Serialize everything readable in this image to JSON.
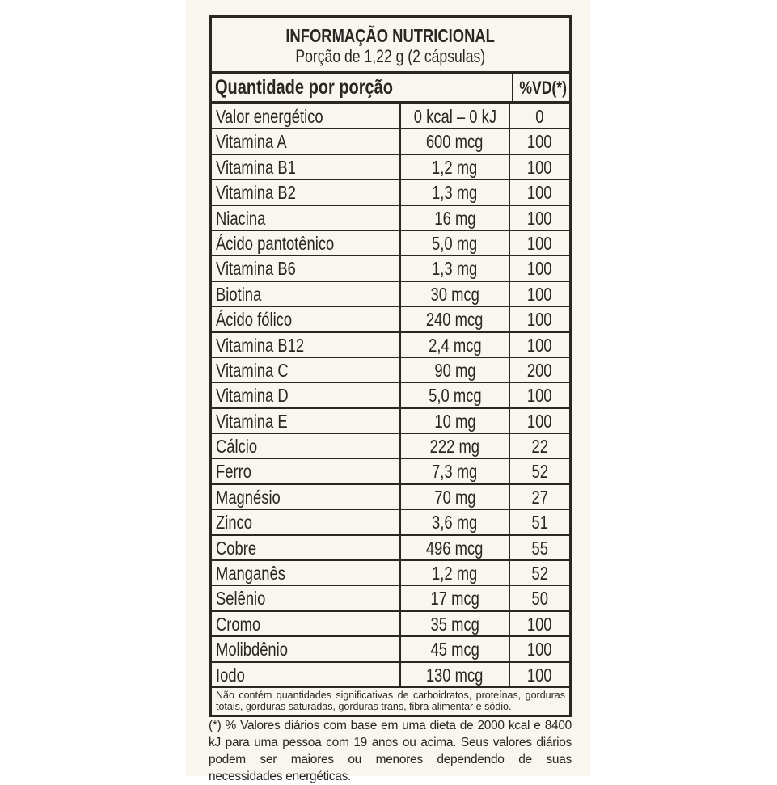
{
  "title": "INFORMAÇÃO NUTRICIONAL",
  "serving": "Porção de 1,22 g (2 cápsulas)",
  "header": {
    "quantity": "Quantidade por porção",
    "dv": "%VD(*)"
  },
  "rows": [
    {
      "name": "Valor energético",
      "amount": "0 kcal – 0 kJ",
      "dv": "0"
    },
    {
      "name": "Vitamina A",
      "amount": "600 mcg",
      "dv": "100"
    },
    {
      "name": "Vitamina B1",
      "amount": "1,2 mg",
      "dv": "100"
    },
    {
      "name": "Vitamina B2",
      "amount": "1,3 mg",
      "dv": "100"
    },
    {
      "name": "Niacina",
      "amount": "16 mg",
      "dv": "100"
    },
    {
      "name": "Ácido pantotênico",
      "amount": "5,0 mg",
      "dv": "100"
    },
    {
      "name": "Vitamina B6",
      "amount": "1,3 mg",
      "dv": "100"
    },
    {
      "name": "Biotina",
      "amount": "30 mcg",
      "dv": "100"
    },
    {
      "name": "Ácido fólico",
      "amount": "240 mcg",
      "dv": "100"
    },
    {
      "name": "Vitamina B12",
      "amount": "2,4 mcg",
      "dv": "100"
    },
    {
      "name": "Vitamina C",
      "amount": "90 mg",
      "dv": "200"
    },
    {
      "name": "Vitamina D",
      "amount": "5,0 mcg",
      "dv": "100"
    },
    {
      "name": "Vitamina E",
      "amount": "10 mg",
      "dv": "100"
    },
    {
      "name": "Cálcio",
      "amount": "222 mg",
      "dv": "22"
    },
    {
      "name": "Ferro",
      "amount": "7,3 mg",
      "dv": "52"
    },
    {
      "name": "Magnésio",
      "amount": "70 mg",
      "dv": "27"
    },
    {
      "name": "Zinco",
      "amount": "3,6 mg",
      "dv": "51"
    },
    {
      "name": "Cobre",
      "amount": "496 mcg",
      "dv": "55"
    },
    {
      "name": "Manganês",
      "amount": "1,2 mg",
      "dv": "52"
    },
    {
      "name": "Selênio",
      "amount": "17 mcg",
      "dv": "50"
    },
    {
      "name": "Cromo",
      "amount": "35 mcg",
      "dv": "100"
    },
    {
      "name": "Molibdênio",
      "amount": "45 mcg",
      "dv": "100"
    },
    {
      "name": "Iodo",
      "amount": "130 mcg",
      "dv": "100"
    }
  ],
  "note": "Não contém quantidades significativas de carboidratos, proteínas, gorduras totais, gorduras saturadas, gorduras trans, fibra alimentar  e sódio.",
  "footnote": "(*) % Valores diários com base em uma dieta de 2000 kcal e 8400 kJ para uma pessoa com 19 anos ou acima. Seus valores diários podem ser maiores ou menores dependendo de suas necessidades energéticas.",
  "colors": {
    "background": "#f9f6ef",
    "text": "#2a2624"
  }
}
